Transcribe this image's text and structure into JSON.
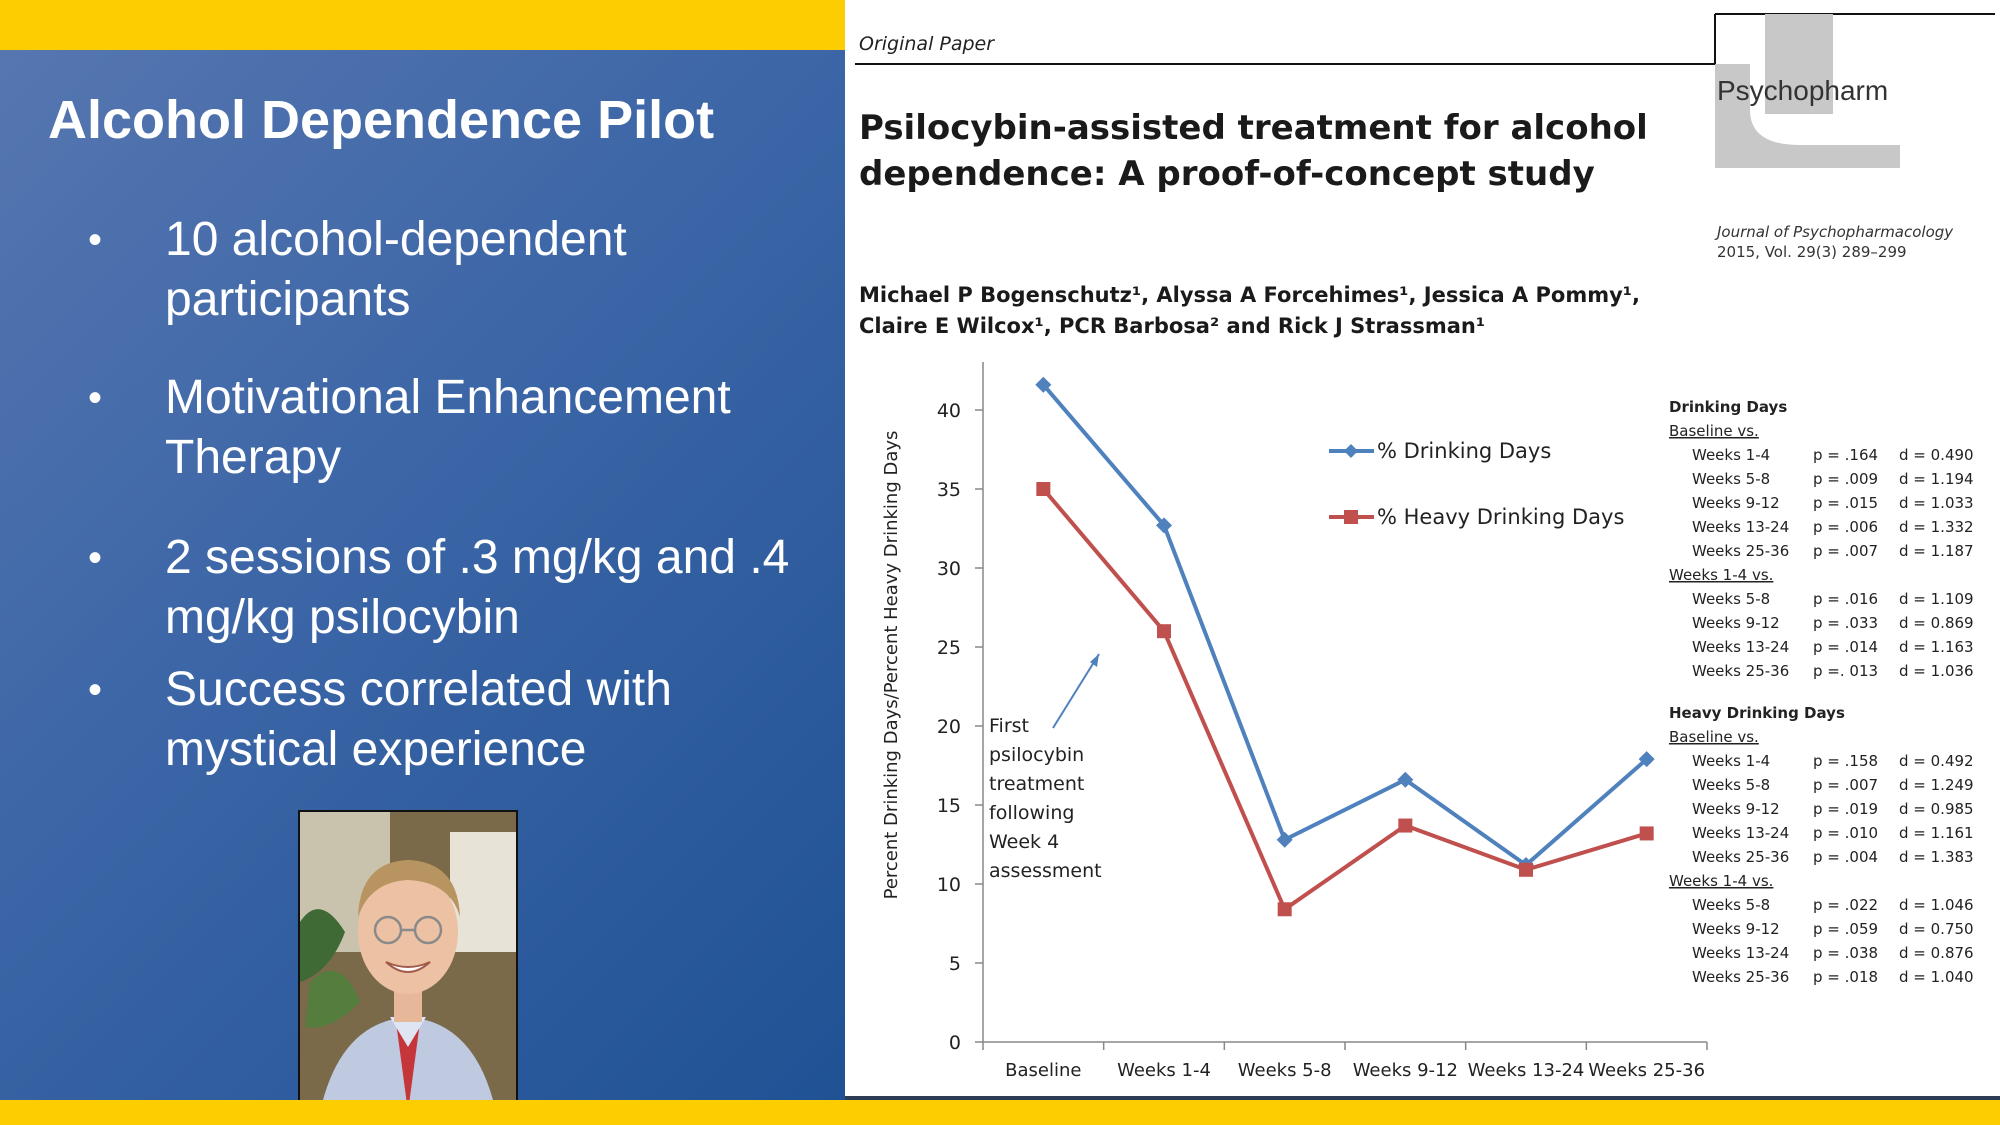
{
  "slide": {
    "title": "Alcohol Dependence Pilot",
    "bullets": [
      {
        "marker": "•",
        "text": "10 alcohol-dependent participants"
      },
      {
        "marker": "•",
        "text": "Motivational Enhancement Therapy"
      },
      {
        "marker": "•",
        "text": "2 sessions of .3 mg/kg and .4 mg/kg psilocybin"
      },
      {
        "marker": "•",
        "text": "Success correlated with mystical experience"
      }
    ],
    "photo_icon": "portrait-photo",
    "colors": {
      "panel": "#3b65a6",
      "accent_bar": "#fccd00"
    }
  },
  "paper": {
    "label": "Original Paper",
    "title_line1": "Psilocybin-assisted treatment for alcohol",
    "title_line2": "dependence: A proof-of-concept study",
    "authors_line1": "Michael P Bogenschutz¹, Alyssa A Forcehimes¹, Jessica A Pommy¹,",
    "authors_line2": "Claire E Wilcox¹, PCR Barbosa² and Rick J Strassman¹",
    "journal_logo": "Psychopharm",
    "journal_name": "Journal of Psychopharmacology",
    "journal_issue": "2015, Vol. 29(3) 289–299"
  },
  "chart_data": {
    "type": "line",
    "title": "",
    "ylabel": "Percent Drinking Days/Percent Heavy Drinking Days",
    "xlabel": "",
    "categories": [
      "Baseline",
      "Weeks 1-4",
      "Weeks 5-8",
      "Weeks 9-12",
      "Weeks 13-24",
      "Weeks 25-36"
    ],
    "ylim": [
      0,
      40
    ],
    "yticks": [
      "0",
      "5",
      "10",
      "15",
      "20",
      "25",
      "30",
      "35",
      "40"
    ],
    "series": [
      {
        "name": "% Drinking Days",
        "color": "#4f81bd",
        "marker": "diamond",
        "values": [
          41.6,
          32.7,
          12.8,
          16.6,
          11.2,
          17.9
        ]
      },
      {
        "name": "% Heavy Drinking Days",
        "color": "#c0504d",
        "marker": "square",
        "values": [
          35.0,
          26.0,
          8.4,
          13.7,
          10.9,
          13.2
        ]
      }
    ],
    "legend_placement": "top-center",
    "annotation": [
      "First",
      "psilocybin",
      "treatment",
      "following",
      "Week 4",
      "assessment"
    ],
    "stats": {
      "sections": [
        {
          "heading": "Drinking Days",
          "groups": [
            {
              "label": "Baseline vs.",
              "rows": [
                {
                  "week": "Weeks 1-4",
                  "p": "p = .164",
                  "d": "d = 0.490"
                },
                {
                  "week": "Weeks 5-8",
                  "p": "p = .009",
                  "d": "d = 1.194"
                },
                {
                  "week": "Weeks 9-12",
                  "p": "p = .015",
                  "d": "d = 1.033"
                },
                {
                  "week": "Weeks 13-24",
                  "p": "p = .006",
                  "d": "d = 1.332"
                },
                {
                  "week": "Weeks 25-36",
                  "p": "p = .007",
                  "d": "d = 1.187"
                }
              ]
            },
            {
              "label": "Weeks 1-4 vs.",
              "rows": [
                {
                  "week": "Weeks 5-8",
                  "p": "p = .016",
                  "d": "d = 1.109"
                },
                {
                  "week": "Weeks 9-12",
                  "p": "p = .033",
                  "d": "d = 0.869"
                },
                {
                  "week": "Weeks 13-24",
                  "p": "p = .014",
                  "d": "d = 1.163"
                },
                {
                  "week": "Weeks 25-36",
                  "p": "p =. 013",
                  "d": "d = 1.036"
                }
              ]
            }
          ]
        },
        {
          "heading": "Heavy Drinking Days",
          "groups": [
            {
              "label": "Baseline vs.",
              "rows": [
                {
                  "week": "Weeks 1-4",
                  "p": "p = .158",
                  "d": "d = 0.492"
                },
                {
                  "week": "Weeks 5-8",
                  "p": "p = .007",
                  "d": "d = 1.249"
                },
                {
                  "week": "Weeks 9-12",
                  "p": "p = .019",
                  "d": "d = 0.985"
                },
                {
                  "week": "Weeks 13-24",
                  "p": "p = .010",
                  "d": "d = 1.161"
                },
                {
                  "week": "Weeks 25-36",
                  "p": "p = .004",
                  "d": "d = 1.383"
                }
              ]
            },
            {
              "label": "Weeks 1-4 vs.",
              "rows": [
                {
                  "week": "Weeks 5-8",
                  "p": "p = .022",
                  "d": "d = 1.046"
                },
                {
                  "week": "Weeks 9-12",
                  "p": "p = .059",
                  "d": "d = 0.750"
                },
                {
                  "week": "Weeks 13-24",
                  "p": "p = .038",
                  "d": "d = 0.876"
                },
                {
                  "week": "Weeks 25-36",
                  "p": "p = .018",
                  "d": "d = 1.040"
                }
              ]
            }
          ]
        }
      ]
    }
  }
}
